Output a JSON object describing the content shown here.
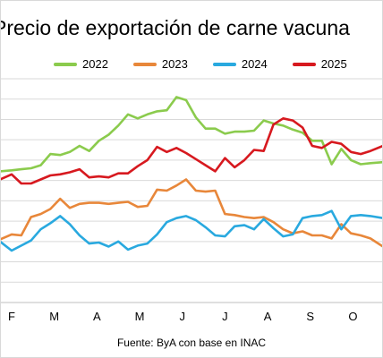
{
  "title": "Precio de exportación de carne vacuna",
  "source": "Fuente: ByA con base en INAC",
  "chart_data": {
    "type": "line",
    "title": "Precio de exportación de carne vacuna",
    "xlabel": "",
    "ylabel": "",
    "grid": true,
    "legend_position": "top",
    "x_tick_labels": [
      "F",
      "M",
      "A",
      "M",
      "J",
      "J",
      "A",
      "S",
      "O"
    ],
    "x_tick_positions": [
      5,
      9.4,
      13.8,
      18.2,
      22.6,
      27,
      31.4,
      35.8,
      40.2
    ],
    "xlim": [
      3.8,
      43.3
    ],
    "ylim": [
      0,
      11
    ],
    "series": [
      {
        "name": "2022",
        "color": "#8BCB4D",
        "x": [
          3.8,
          5,
          6,
          7,
          8,
          9,
          10,
          11,
          12,
          13,
          14,
          15,
          16,
          17,
          18,
          19,
          20,
          21,
          22,
          23,
          24,
          25,
          26,
          27,
          28,
          29,
          30,
          31,
          32,
          33,
          34,
          35,
          36,
          37,
          38,
          39,
          40,
          41,
          42,
          43.3
        ],
        "y": [
          6.45,
          6.5,
          6.55,
          6.6,
          6.75,
          7.3,
          7.25,
          7.4,
          7.7,
          7.45,
          7.95,
          8.25,
          8.7,
          9.25,
          9.05,
          9.25,
          9.4,
          9.45,
          10.1,
          9.95,
          9.1,
          8.55,
          8.55,
          8.3,
          8.4,
          8.4,
          8.45,
          8.95,
          8.8,
          8.7,
          8.5,
          8.35,
          7.95,
          7.95,
          6.8,
          7.55,
          7.0,
          6.8,
          6.85,
          6.9
        ]
      },
      {
        "name": "2023",
        "color": "#E8873A",
        "x": [
          3.8,
          5,
          6,
          7,
          8,
          9,
          10,
          11,
          12,
          13,
          14,
          15,
          16,
          17,
          18,
          19,
          20,
          21,
          22,
          23,
          24,
          25,
          26,
          27,
          28,
          29,
          30,
          31,
          32,
          33,
          34,
          35,
          36,
          37,
          38,
          39,
          40,
          41,
          42,
          43.3
        ],
        "y": [
          3.1,
          3.35,
          3.3,
          4.2,
          4.35,
          4.6,
          5.1,
          4.65,
          4.85,
          4.9,
          4.9,
          4.85,
          4.9,
          4.95,
          4.7,
          4.75,
          5.55,
          5.5,
          5.75,
          6.05,
          5.5,
          5.45,
          5.5,
          4.35,
          4.3,
          4.2,
          4.15,
          4.2,
          3.95,
          3.6,
          3.4,
          3.5,
          3.3,
          3.3,
          3.15,
          3.85,
          3.4,
          3.3,
          3.15,
          2.75
        ]
      },
      {
        "name": "2024",
        "color": "#29A9DF",
        "x": [
          3.8,
          5,
          6,
          7,
          8,
          9,
          10,
          11,
          12,
          13,
          14,
          15,
          16,
          17,
          18,
          19,
          20,
          21,
          22,
          23,
          24,
          25,
          26,
          27,
          28,
          29,
          30,
          31,
          32,
          33,
          34,
          35,
          36,
          37,
          38,
          39,
          40,
          41,
          42,
          43.3
        ],
        "y": [
          3.0,
          2.55,
          2.8,
          3.05,
          3.6,
          3.9,
          4.25,
          3.85,
          3.3,
          2.9,
          2.95,
          2.75,
          3.0,
          2.6,
          2.8,
          2.9,
          3.35,
          3.95,
          4.15,
          4.25,
          4.05,
          3.7,
          3.3,
          3.25,
          3.75,
          3.8,
          3.6,
          4.1,
          3.65,
          3.25,
          3.35,
          4.15,
          4.25,
          4.3,
          4.5,
          3.6,
          4.25,
          4.3,
          4.25,
          4.15
        ]
      },
      {
        "name": "2025",
        "color": "#D7191F",
        "x": [
          3.8,
          5,
          6,
          7,
          8,
          9,
          10,
          11,
          12,
          13,
          14,
          15,
          16,
          17,
          18,
          19,
          20,
          21,
          22,
          23,
          24,
          25,
          26,
          27,
          28,
          29,
          30,
          31,
          32,
          33,
          34,
          35,
          36,
          37,
          38,
          39,
          40,
          41,
          42,
          43.3
        ],
        "y": [
          6.05,
          6.3,
          5.85,
          5.85,
          6.05,
          6.25,
          6.3,
          6.4,
          6.55,
          6.15,
          6.2,
          6.15,
          6.35,
          6.35,
          6.7,
          7.0,
          7.65,
          7.4,
          7.6,
          7.35,
          7.05,
          6.75,
          6.45,
          7.1,
          6.65,
          7.0,
          7.5,
          7.45,
          8.75,
          9.05,
          8.95,
          8.6,
          7.7,
          7.6,
          7.9,
          7.8,
          7.4,
          7.3,
          7.45,
          7.7
        ]
      }
    ]
  }
}
